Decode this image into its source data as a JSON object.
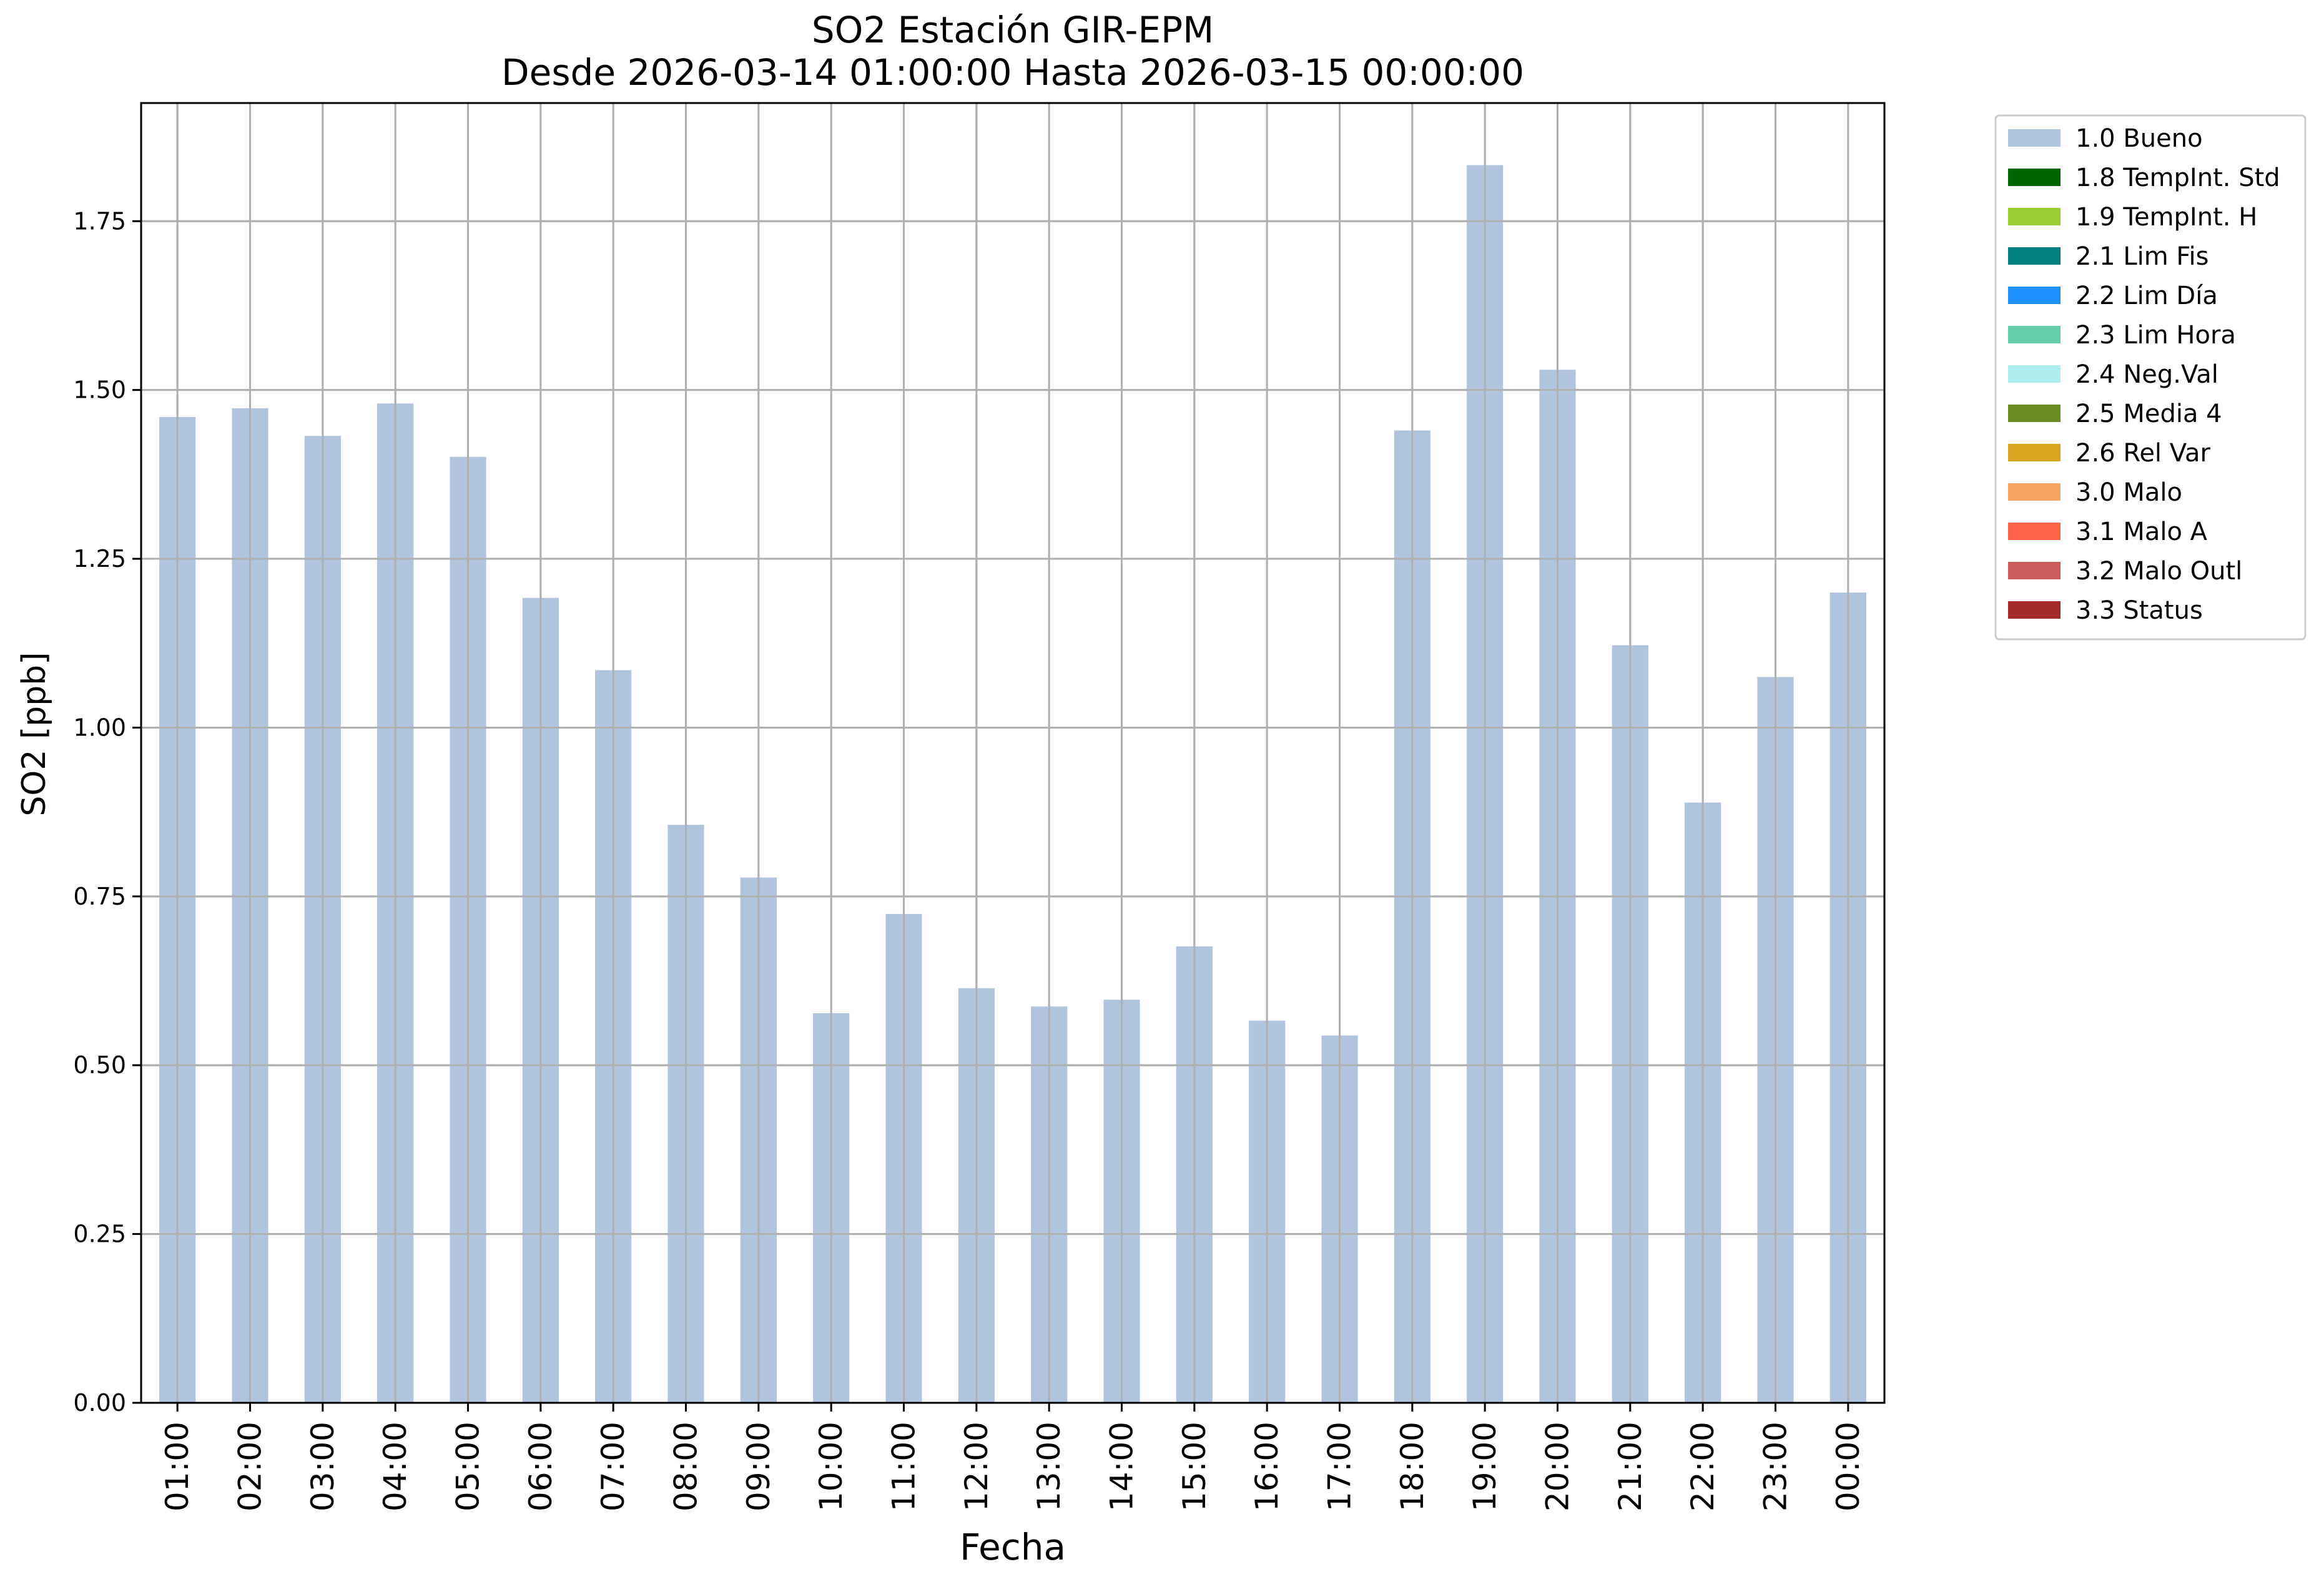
{
  "chart_data": {
    "type": "bar",
    "title": "SO2 Estación GIR-EPM",
    "subtitle": "Desde 2026-03-14 01:00:00 Hasta 2026-03-15 00:00:00",
    "xlabel": "Fecha",
    "ylabel": "SO2 [ppb]",
    "ylim": [
      0,
      1.925
    ],
    "yticks": [
      "0.00",
      "0.25",
      "0.50",
      "0.75",
      "1.00",
      "1.25",
      "1.50",
      "1.75"
    ],
    "grid": true,
    "legend_position": "outside-top-right",
    "categories": [
      "01:00",
      "02:00",
      "03:00",
      "04:00",
      "05:00",
      "06:00",
      "07:00",
      "08:00",
      "09:00",
      "10:00",
      "11:00",
      "12:00",
      "13:00",
      "14:00",
      "15:00",
      "16:00",
      "17:00",
      "18:00",
      "19:00",
      "20:00",
      "21:00",
      "22:00",
      "23:00",
      "00:00"
    ],
    "series": [
      {
        "name": "1.0 Bueno",
        "color": "#b0c4de",
        "values": [
          1.46,
          1.473,
          1.432,
          1.48,
          1.401,
          1.192,
          1.085,
          0.856,
          0.778,
          0.577,
          0.724,
          0.614,
          0.587,
          0.597,
          0.676,
          0.566,
          0.544,
          1.44,
          1.833,
          1.53,
          1.122,
          0.889,
          1.075,
          1.2
        ]
      }
    ],
    "legend": [
      {
        "label": "1.0 Bueno",
        "color": "#b0c4de"
      },
      {
        "label": "1.8 TempInt. Std",
        "color": "#006400"
      },
      {
        "label": "1.9 TempInt. H",
        "color": "#9acd32"
      },
      {
        "label": "2.1 Lim Fis",
        "color": "#008080"
      },
      {
        "label": "2.2 Lim Día",
        "color": "#1e90ff"
      },
      {
        "label": "2.3 Lim Hora",
        "color": "#66cdaa"
      },
      {
        "label": "2.4 Neg.Val",
        "color": "#afeeee"
      },
      {
        "label": "2.5 Media 4",
        "color": "#6b8e23"
      },
      {
        "label": "2.6 Rel Var",
        "color": "#daa520"
      },
      {
        "label": "3.0 Malo",
        "color": "#f4a460"
      },
      {
        "label": "3.1 Malo A",
        "color": "#ff6347"
      },
      {
        "label": "3.2 Malo Outl",
        "color": "#cd5c5c"
      },
      {
        "label": "3.3 Status",
        "color": "#a52a2a"
      }
    ]
  }
}
